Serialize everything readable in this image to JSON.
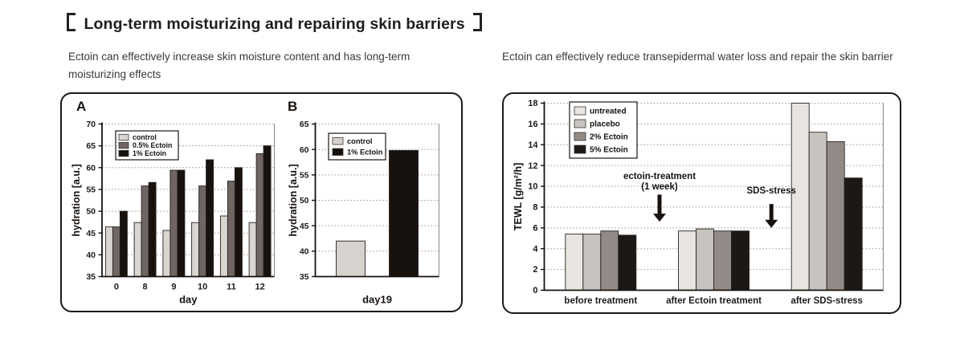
{
  "header": {
    "title": "【Long-term moisturizing and repairing skin barriers】"
  },
  "sections": {
    "left_caption": "Ectoin can effectively increase skin moisture content and has long-term moisturizing effects",
    "right_caption": "Ectoin can effectively reduce transepidermal water loss and repair the skin barrier"
  },
  "colors": {
    "panel_border": "#1a1a1a",
    "grid": "#9f9b97",
    "axis": "#17120f",
    "text": "#1d1a17",
    "control_light_gray": "#d9d5d0",
    "ectoin_05_dark_gray": "#6f6562",
    "ectoin_1_black": "#17120e",
    "untreated_light": "#e8e5e1",
    "placebo_gray": "#c7c3bf",
    "ectoin_2_gray": "#918a86",
    "ectoin_5_black": "#1c1815"
  },
  "chart_data": [
    {
      "id": "hydration_a",
      "type": "bar",
      "panel_label": "A",
      "title": "",
      "xlabel": "day",
      "ylabel": "hydration [a.u.]",
      "ylim": [
        35,
        70
      ],
      "ytick_step": 5,
      "grid": "horizontal-dotted",
      "legend_position": "top-left",
      "categories": [
        "0",
        "8",
        "9",
        "10",
        "11",
        "12"
      ],
      "series": [
        {
          "name": "control",
          "color": "#d9d5d0",
          "values": [
            46.4,
            47.4,
            45.6,
            47.4,
            48.9,
            47.4
          ]
        },
        {
          "name": "0.5% Ectoin",
          "color": "#6f6562",
          "values": [
            46.4,
            55.8,
            59.4,
            55.8,
            56.9,
            63.2
          ]
        },
        {
          "name": "1% Ectoin",
          "color": "#17120e",
          "values": [
            50.0,
            56.6,
            59.4,
            61.8,
            60.0,
            65.0
          ]
        }
      ]
    },
    {
      "id": "hydration_b",
      "type": "bar",
      "panel_label": "B",
      "title": "",
      "xlabel": "day19",
      "ylabel": "hydration [a.u.]",
      "ylim": [
        35,
        65
      ],
      "ytick_step": 5,
      "grid": "horizontal-dotted",
      "legend_position": "top-left",
      "categories": [
        ""
      ],
      "series": [
        {
          "name": "control",
          "color": "#d6d2cd",
          "values": [
            42.0
          ]
        },
        {
          "name": "1% Ectoin",
          "color": "#17120e",
          "values": [
            59.8
          ]
        }
      ]
    },
    {
      "id": "tewl",
      "type": "bar",
      "panel_label": "",
      "title": "",
      "xlabel": "",
      "ylabel": "TEWL [g/m²/h]",
      "ylim": [
        0,
        18
      ],
      "ytick_step": 2,
      "grid": "horizontal-dotted",
      "legend_position": "top-left",
      "categories": [
        "before treatment",
        "after Ectoin treatment",
        "after SDS-stress"
      ],
      "series": [
        {
          "name": "untreated",
          "color": "#e8e5e1",
          "values": [
            5.4,
            5.7,
            18.0
          ]
        },
        {
          "name": "placebo",
          "color": "#c7c3bf",
          "values": [
            5.4,
            5.9,
            15.2
          ]
        },
        {
          "name": "2% Ectoin",
          "color": "#918a86",
          "values": [
            5.7,
            5.7,
            14.3
          ]
        },
        {
          "name": "5% Ectoin",
          "color": "#1c1815",
          "values": [
            5.3,
            5.7,
            10.8
          ]
        }
      ],
      "annotations": [
        {
          "lines": [
            "ectoin-treatment",
            "(1 week)"
          ],
          "x_frac": 0.34,
          "text_value": 10.7,
          "arrow_from": 9.2,
          "arrow_to": 6.6
        },
        {
          "lines": [
            "SDS-stress"
          ],
          "x_frac": 0.67,
          "text_value": 9.3,
          "arrow_from": 8.3,
          "arrow_to": 6.0
        }
      ]
    }
  ]
}
